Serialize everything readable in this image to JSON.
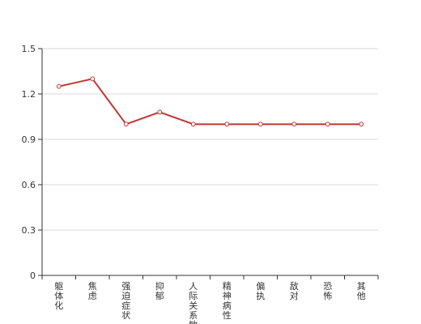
{
  "chart_data": {
    "type": "line",
    "categories": [
      "躯体化",
      "焦虑",
      "强迫症状",
      "抑郁",
      "人际关系敏感",
      "精神病性",
      "偏执",
      "敌对",
      "恐怖",
      "其他"
    ],
    "series": [
      {
        "values": [
          1.25,
          1.3,
          1.0,
          1.08,
          1.0,
          1.0,
          1.0,
          1.0,
          1.0,
          1.0
        ],
        "color": "#c23531"
      }
    ],
    "ylim": [
      0,
      1.5
    ],
    "yticks": [
      0,
      0.3,
      0.6,
      0.9,
      1.2,
      1.5
    ],
    "ytick_labels": [
      "0",
      "0.3",
      "0.6",
      "0.9",
      "1.2",
      "1.5"
    ],
    "grid": true
  }
}
